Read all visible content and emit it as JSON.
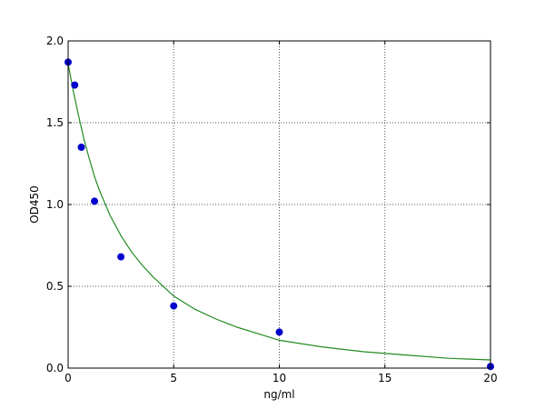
{
  "chart_data": {
    "type": "scatter",
    "title": "",
    "xlabel": "ng/ml",
    "ylabel": "OD450",
    "xlim": [
      0,
      20
    ],
    "ylim": [
      0.0,
      2.0
    ],
    "x_ticks": [
      0,
      5,
      10,
      15,
      20
    ],
    "y_ticks": [
      0.0,
      0.5,
      1.0,
      1.5,
      2.0
    ],
    "x_tick_labels": [
      "0",
      "5",
      "10",
      "15",
      "20"
    ],
    "y_tick_labels": [
      "0.0",
      "0.5",
      "1.0",
      "1.5",
      "2.0"
    ],
    "grid": true,
    "series": [
      {
        "type": "scatter",
        "color": "#0000cc",
        "x": [
          0,
          0.3125,
          0.625,
          1.25,
          2.5,
          5,
          10,
          20
        ],
        "y": [
          1.87,
          1.73,
          1.35,
          1.02,
          0.68,
          0.38,
          0.22,
          0.01
        ]
      },
      {
        "type": "line",
        "color": "#228b22",
        "x": [
          0,
          0.25,
          0.5,
          0.75,
          1,
          1.25,
          1.5,
          2,
          2.5,
          3,
          3.5,
          4,
          5,
          6,
          7,
          8,
          9,
          10,
          12,
          14,
          16,
          18,
          20
        ],
        "y": [
          1.86,
          1.69,
          1.54,
          1.4,
          1.28,
          1.17,
          1.08,
          0.93,
          0.81,
          0.71,
          0.63,
          0.56,
          0.44,
          0.36,
          0.3,
          0.25,
          0.21,
          0.17,
          0.13,
          0.1,
          0.08,
          0.06,
          0.05
        ]
      }
    ]
  }
}
